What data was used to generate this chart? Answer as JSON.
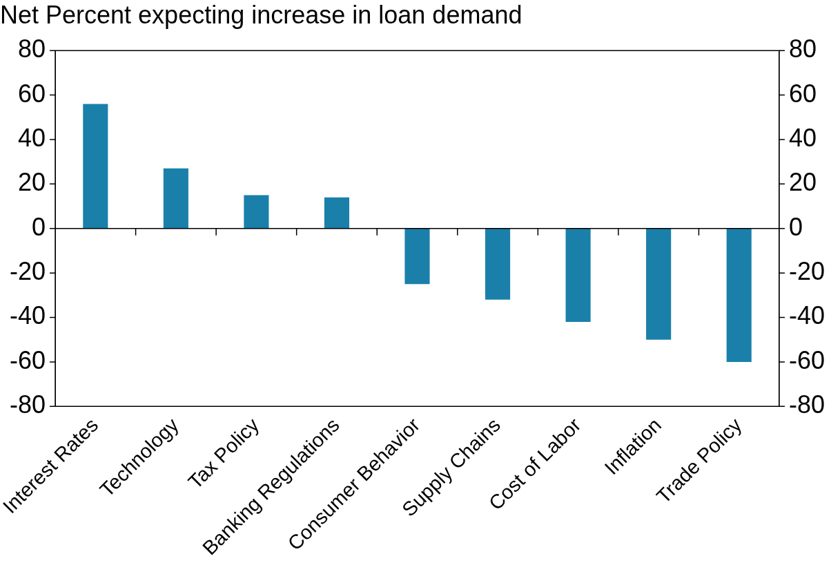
{
  "chart_data": {
    "type": "bar",
    "title": "Net Percent expecting increase in loan demand",
    "categories": [
      "Interest Rates",
      "Technology",
      "Tax Policy",
      "Banking Regulations",
      "Consumer Behavior",
      "Supply Chains",
      "Cost of Labor",
      "Inflation",
      "Trade Policy"
    ],
    "values": [
      56,
      27,
      15,
      14,
      -25,
      -32,
      -42,
      -50,
      -60
    ],
    "color": "#1a80aa",
    "ylim": [
      -80,
      80
    ],
    "yticks": [
      -80,
      -60,
      -40,
      -20,
      0,
      20,
      40,
      60,
      80
    ],
    "y2lim": [
      -80,
      80
    ],
    "y2ticks": [
      -80,
      -60,
      -40,
      -20,
      0,
      20,
      40,
      60,
      80
    ],
    "legend": false
  }
}
